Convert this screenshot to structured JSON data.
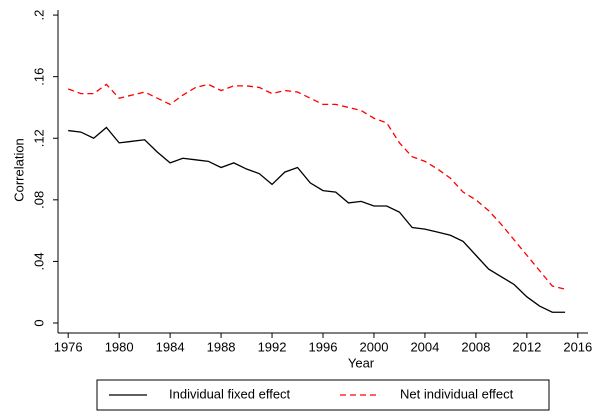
{
  "chart_data": {
    "type": "line",
    "x_label": "Year",
    "y_label": "Correlation",
    "x": [
      1976,
      1977,
      1978,
      1979,
      1980,
      1981,
      1982,
      1983,
      1984,
      1985,
      1986,
      1987,
      1988,
      1989,
      1990,
      1991,
      1992,
      1993,
      1994,
      1995,
      1996,
      1997,
      1998,
      1999,
      2000,
      2001,
      2002,
      2003,
      2004,
      2005,
      2006,
      2007,
      2008,
      2009,
      2010,
      2011,
      2012,
      2013,
      2014,
      2015
    ],
    "series": [
      {
        "name": "Individual fixed effect",
        "color": "#000000",
        "dash": false,
        "values": [
          0.125,
          0.124,
          0.12,
          0.127,
          0.117,
          0.118,
          0.119,
          0.111,
          0.104,
          0.107,
          0.106,
          0.105,
          0.101,
          0.104,
          0.1,
          0.097,
          0.09,
          0.098,
          0.101,
          0.091,
          0.086,
          0.085,
          0.078,
          0.079,
          0.076,
          0.076,
          0.072,
          0.062,
          0.061,
          0.059,
          0.057,
          0.053,
          0.044,
          0.035,
          0.03,
          0.025,
          0.017,
          0.011,
          0.007,
          0.007
        ]
      },
      {
        "name": "Net individual effect",
        "color": "#ff0000",
        "dash": true,
        "values": [
          0.152,
          0.149,
          0.149,
          0.155,
          0.146,
          0.148,
          0.15,
          0.146,
          0.142,
          0.148,
          0.153,
          0.155,
          0.151,
          0.154,
          0.154,
          0.153,
          0.149,
          0.151,
          0.15,
          0.146,
          0.142,
          0.142,
          0.14,
          0.138,
          0.133,
          0.13,
          0.117,
          0.108,
          0.105,
          0.1,
          0.094,
          0.085,
          0.08,
          0.073,
          0.064,
          0.054,
          0.044,
          0.034,
          0.024,
          0.022
        ]
      }
    ],
    "xlim": [
      1975.2,
      2016.8
    ],
    "xticks": [
      1976,
      1980,
      1984,
      1988,
      1992,
      1996,
      2000,
      2004,
      2008,
      2012,
      2016
    ],
    "ylim": [
      -0.0065,
      0.2033
    ],
    "yticks": [
      0,
      {
        "value": 0.04,
        "label": ".04"
      },
      {
        "value": 0.08,
        "label": ".08"
      },
      {
        "value": 0.12,
        "label": ".12"
      },
      {
        "value": 0.16,
        "label": ".16"
      },
      {
        "value": 0.2,
        "label": ".2"
      }
    ],
    "grid": false,
    "legend": "bottom"
  }
}
